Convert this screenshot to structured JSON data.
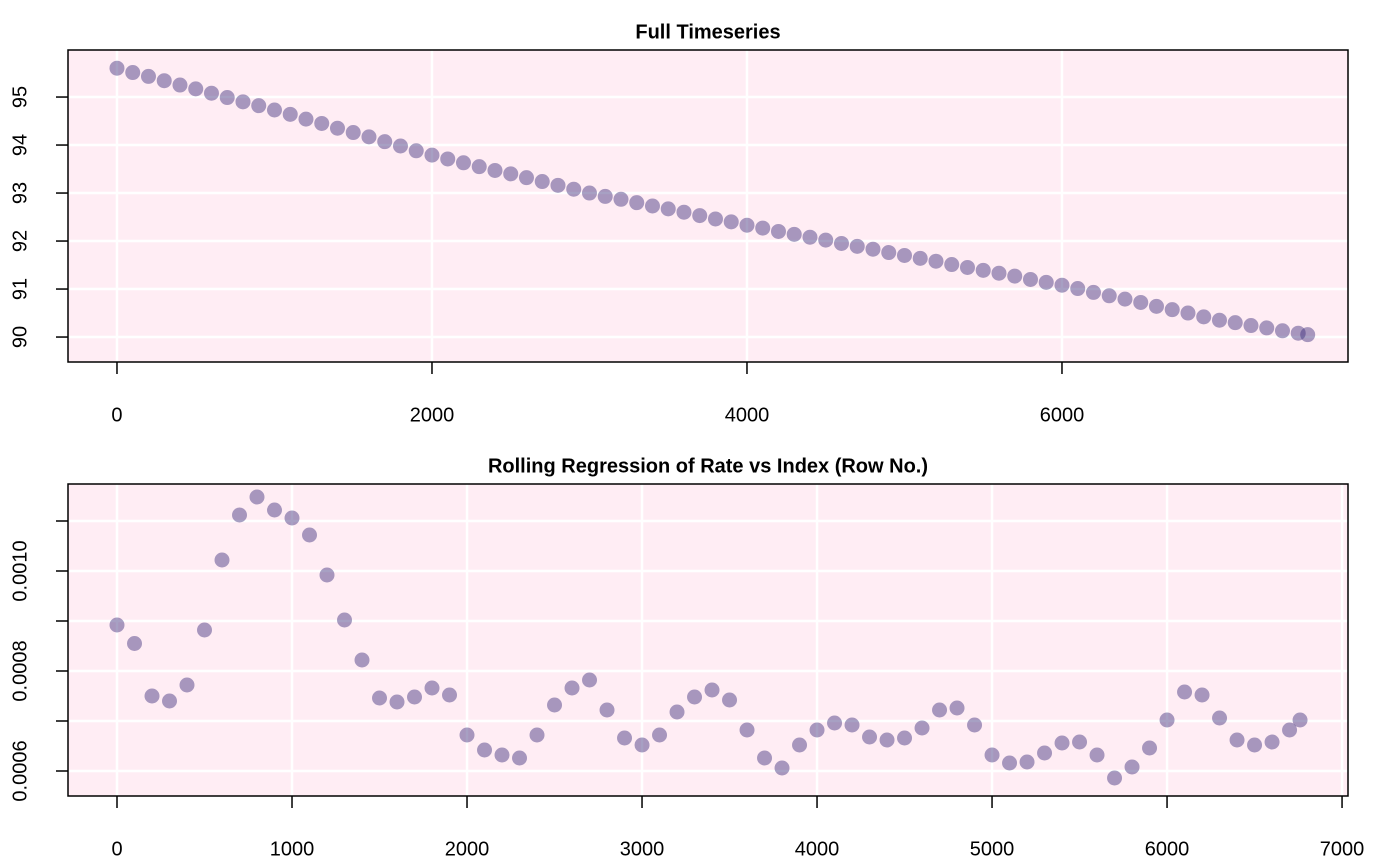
{
  "chart_data": [
    {
      "type": "scatter",
      "title": "Full Timeseries",
      "color": "#3b2c7a",
      "grid": true,
      "xlim": [
        -311,
        7816
      ],
      "ylim": [
        89.48,
        95.98
      ],
      "xticks": [
        0,
        2000,
        4000,
        6000
      ],
      "yticks": [
        90,
        91,
        92,
        93,
        94,
        95
      ],
      "x": [
        0,
        100,
        200,
        300,
        400,
        500,
        600,
        700,
        800,
        900,
        1000,
        1100,
        1200,
        1300,
        1400,
        1500,
        1600,
        1700,
        1800,
        1900,
        2000,
        2100,
        2200,
        2300,
        2400,
        2500,
        2600,
        2700,
        2800,
        2900,
        3000,
        3100,
        3200,
        3300,
        3400,
        3500,
        3600,
        3700,
        3800,
        3900,
        4000,
        4100,
        4200,
        4300,
        4400,
        4500,
        4600,
        4700,
        4800,
        4900,
        5000,
        5100,
        5200,
        5300,
        5400,
        5500,
        5600,
        5700,
        5800,
        5900,
        6000,
        6100,
        6200,
        6300,
        6400,
        6500,
        6600,
        6700,
        6800,
        6900,
        7000,
        7100,
        7200,
        7300,
        7400,
        7500,
        7560
      ],
      "values": [
        95.6,
        95.51,
        95.43,
        95.34,
        95.25,
        95.17,
        95.08,
        94.99,
        94.9,
        94.82,
        94.73,
        94.64,
        94.54,
        94.45,
        94.35,
        94.26,
        94.17,
        94.07,
        93.98,
        93.88,
        93.79,
        93.71,
        93.63,
        93.55,
        93.47,
        93.4,
        93.32,
        93.24,
        93.16,
        93.08,
        93.0,
        92.93,
        92.87,
        92.8,
        92.73,
        92.67,
        92.6,
        92.53,
        92.46,
        92.4,
        92.33,
        92.27,
        92.2,
        92.14,
        92.08,
        92.02,
        91.95,
        91.89,
        91.83,
        91.76,
        91.7,
        91.64,
        91.58,
        91.51,
        91.45,
        91.39,
        91.33,
        91.27,
        91.2,
        91.14,
        91.08,
        91.01,
        90.93,
        90.86,
        90.79,
        90.72,
        90.64,
        90.57,
        90.5,
        90.42,
        90.35,
        90.3,
        90.24,
        90.19,
        90.13,
        90.08,
        90.05
      ]
    },
    {
      "type": "scatter",
      "title": "Rolling Regression of Rate vs Index (Row No.)",
      "color": "#3b2c7a",
      "grid": true,
      "xlim": [
        -280,
        7034
      ],
      "ylim": [
        0.00055,
        0.001174
      ],
      "xticks": [
        0,
        1000,
        2000,
        3000,
        4000,
        5000,
        6000,
        7000
      ],
      "yticks": [
        {
          "value": 0.0006,
          "label": "0.0006"
        },
        {
          "value": 0.0007,
          "label": null
        },
        {
          "value": 0.0008,
          "label": "0.0008"
        },
        {
          "value": 0.0009,
          "label": null
        },
        {
          "value": 0.001,
          "label": "0.0010"
        },
        {
          "value": 0.0011,
          "label": null
        }
      ],
      "x": [
        0,
        100,
        200,
        300,
        400,
        500,
        600,
        700,
        800,
        900,
        1000,
        1100,
        1200,
        1300,
        1400,
        1500,
        1600,
        1700,
        1800,
        1900,
        2000,
        2100,
        2200,
        2300,
        2400,
        2500,
        2600,
        2700,
        2800,
        2900,
        3000,
        3100,
        3200,
        3300,
        3400,
        3500,
        3600,
        3700,
        3800,
        3900,
        4000,
        4100,
        4200,
        4300,
        4400,
        4500,
        4600,
        4700,
        4800,
        4900,
        5000,
        5100,
        5200,
        5300,
        5400,
        5500,
        5600,
        5700,
        5800,
        5900,
        6000,
        6100,
        6200,
        6300,
        6400,
        6500,
        6600,
        6700,
        6760
      ],
      "values": [
        0.000892,
        0.000855,
        0.00075,
        0.00074,
        0.000772,
        0.000882,
        0.001022,
        0.001112,
        0.001148,
        0.001122,
        0.001106,
        0.001072,
        0.000992,
        0.000902,
        0.000822,
        0.000746,
        0.000738,
        0.000748,
        0.000766,
        0.000752,
        0.000672,
        0.000642,
        0.000632,
        0.000626,
        0.000672,
        0.000732,
        0.000766,
        0.000782,
        0.000722,
        0.000666,
        0.000652,
        0.000672,
        0.000718,
        0.000748,
        0.000762,
        0.000742,
        0.000682,
        0.000626,
        0.000606,
        0.000652,
        0.000682,
        0.000696,
        0.000692,
        0.000668,
        0.000662,
        0.000666,
        0.000686,
        0.000722,
        0.000726,
        0.000692,
        0.000632,
        0.000616,
        0.000618,
        0.000636,
        0.000656,
        0.000658,
        0.000632,
        0.000586,
        0.000608,
        0.000646,
        0.000702,
        0.000758,
        0.000752,
        0.000706,
        0.000662,
        0.000652,
        0.000658,
        0.000682,
        0.000702
      ]
    }
  ]
}
